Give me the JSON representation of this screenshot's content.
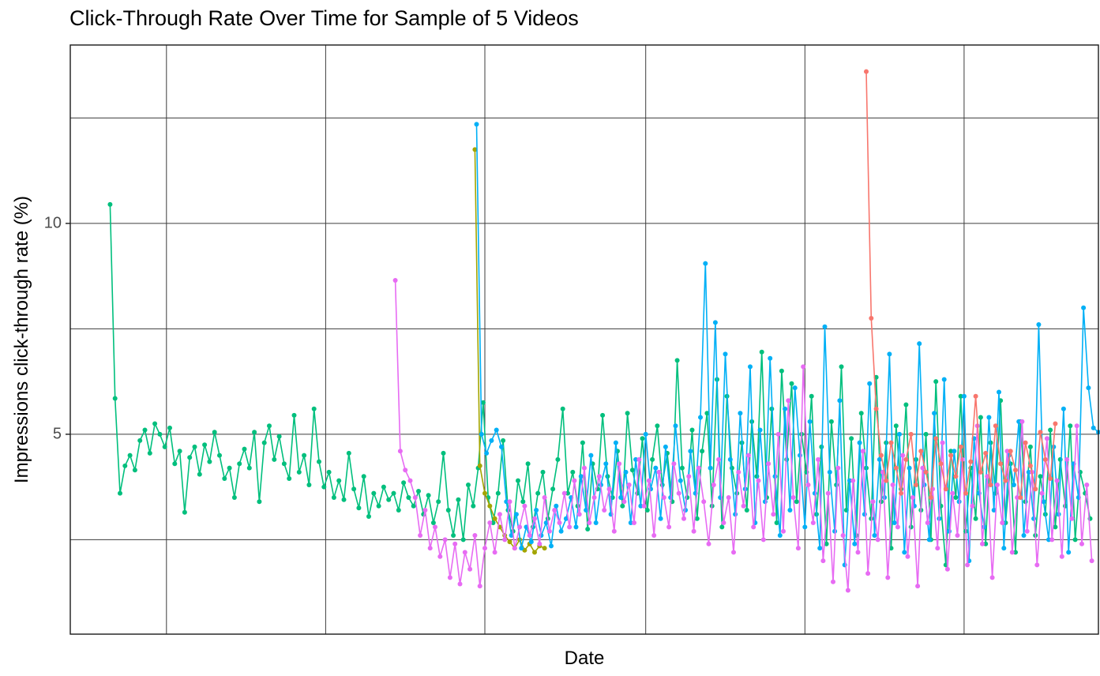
{
  "title": "Click-Through Rate Over Time for Sample of 5 Videos",
  "chart_data": {
    "type": "line",
    "title": "Click-Through Rate Over Time for Sample of 5 Videos",
    "xlabel": "Date",
    "ylabel": "Impressions click-through rate (%)",
    "legend": "none",
    "xlim": [
      0,
      620
    ],
    "ylim": [
      0.26,
      14.23
    ],
    "x_gridlines": [
      58,
      154,
      250,
      347,
      443,
      539
    ],
    "y_gridlines": [
      2.5,
      5,
      7.5,
      10,
      12.5
    ],
    "y_ticks": [
      {
        "value": 5,
        "label": "5"
      },
      {
        "value": 10,
        "label": "10"
      }
    ],
    "x_tick_labels": [],
    "series": [
      {
        "name": "video-1",
        "color": "#00BF7D",
        "x_start": 24,
        "x_step": 3,
        "values": [
          10.45,
          5.85,
          3.6,
          4.25,
          4.5,
          4.15,
          4.85,
          5.1,
          4.55,
          5.25,
          5.0,
          4.7,
          5.15,
          4.3,
          4.6,
          3.15,
          4.45,
          4.7,
          4.05,
          4.75,
          4.35,
          5.05,
          4.5,
          3.95,
          4.2,
          3.5,
          4.3,
          4.65,
          4.2,
          5.05,
          3.4,
          4.8,
          5.2,
          4.4,
          4.95,
          4.3,
          3.95,
          5.45,
          4.1,
          4.5,
          3.8,
          5.6,
          4.35,
          3.75,
          4.1,
          3.5,
          3.9,
          3.45,
          4.55,
          3.7,
          3.25,
          4.0,
          3.05,
          3.6,
          3.3,
          3.75,
          3.45,
          3.6,
          3.2,
          3.85,
          3.5,
          3.3,
          3.65,
          3.1,
          3.55,
          2.9,
          3.4,
          4.55,
          3.2,
          2.6,
          3.45,
          2.5,
          3.8,
          3.3,
          4.2,
          5.75,
          3.5,
          2.9,
          3.6,
          4.85,
          3.2,
          2.7,
          3.9,
          3.4,
          4.3,
          2.8,
          3.6,
          4.1,
          3.0,
          3.7,
          4.4,
          5.6,
          3.6,
          4.1,
          3.3,
          4.8,
          2.75,
          4.3,
          3.7,
          5.45,
          4.0,
          3.5,
          4.6,
          3.3,
          5.5,
          4.15,
          3.6,
          4.9,
          3.2,
          4.4,
          5.2,
          3.8,
          4.55,
          3.4,
          6.75,
          4.2,
          3.5,
          5.1,
          3.0,
          4.6,
          5.5,
          3.3,
          6.3,
          2.8,
          5.9,
          4.2,
          3.6,
          4.8,
          3.2,
          5.3,
          4.0,
          6.95,
          3.5,
          5.6,
          2.9,
          6.5,
          4.4,
          6.2,
          3.4,
          5.0,
          4.1,
          5.9,
          3.1,
          4.7,
          2.4,
          5.3,
          3.8,
          6.6,
          3.2,
          4.9,
          2.6,
          5.5,
          4.2,
          3.0,
          6.35,
          3.4,
          4.8,
          2.3,
          5.2,
          3.7,
          5.7,
          2.8,
          4.4,
          3.2,
          5.0,
          2.5,
          6.25,
          3.3,
          1.9,
          4.6,
          3.5,
          5.9,
          2.7,
          4.2,
          3.0,
          5.4,
          2.4,
          4.8,
          3.6,
          5.8,
          2.9,
          4.3,
          2.2,
          5.3,
          3.4,
          4.7,
          2.6,
          4.0,
          3.1,
          5.1,
          2.8,
          4.4,
          3.3,
          5.2,
          2.5,
          4.1,
          3.6,
          3.0
        ]
      },
      {
        "name": "video-2",
        "color": "#A3A500",
        "x_start": 244,
        "x_step": 3,
        "values": [
          11.75,
          4.25,
          3.6,
          3.3,
          3.0,
          2.8,
          2.6,
          2.45,
          2.3,
          2.5,
          2.25,
          2.4,
          2.2,
          2.35,
          2.3
        ]
      },
      {
        "name": "video-3",
        "color": "#00B0F6",
        "x_start": 245,
        "x_step": 3,
        "values": [
          12.35,
          5.0,
          4.55,
          4.85,
          5.1,
          4.7,
          3.4,
          2.6,
          3.1,
          2.3,
          2.8,
          2.45,
          3.2,
          2.6,
          2.9,
          2.35,
          3.3,
          2.7,
          3.0,
          3.5,
          2.8,
          4.0,
          3.2,
          4.5,
          2.9,
          3.8,
          4.3,
          3.1,
          4.8,
          3.5,
          4.1,
          2.9,
          4.4,
          3.3,
          5.0,
          3.7,
          4.2,
          3.0,
          4.7,
          3.5,
          5.2,
          3.9,
          3.2,
          4.6,
          3.6,
          5.4,
          9.05,
          4.2,
          7.65,
          3.5,
          6.9,
          4.4,
          3.1,
          5.5,
          3.7,
          6.6,
          2.9,
          5.1,
          3.4,
          6.8,
          4.0,
          2.6,
          5.6,
          3.2,
          6.1,
          4.5,
          2.8,
          5.3,
          3.6,
          2.3,
          7.55,
          4.1,
          2.7,
          5.8,
          1.9,
          3.9,
          2.4,
          4.8,
          3.1,
          6.2,
          2.6,
          4.4,
          3.5,
          6.9,
          2.9,
          5.0,
          2.2,
          4.2,
          3.3,
          7.15,
          3.8,
          2.5,
          5.5,
          3.0,
          6.3,
          2.7,
          4.6,
          3.4,
          5.9,
          2.0,
          4.9,
          3.6,
          2.8,
          5.4,
          3.2,
          6.0,
          2.3,
          4.5,
          3.8,
          5.3,
          2.6,
          4.1,
          3.0,
          7.6,
          3.4,
          2.5,
          4.7,
          3.1,
          5.6,
          2.2,
          4.3,
          3.5,
          8.0,
          6.1,
          5.15,
          5.05
        ]
      },
      {
        "name": "video-4",
        "color": "#E76BF3",
        "x_start": 196,
        "x_step": 3,
        "values": [
          8.65,
          4.6,
          4.15,
          3.9,
          3.5,
          2.6,
          3.2,
          2.3,
          2.8,
          2.1,
          2.5,
          1.6,
          2.4,
          1.45,
          2.2,
          1.8,
          2.6,
          1.4,
          2.3,
          2.9,
          2.2,
          3.1,
          2.5,
          3.4,
          2.3,
          2.8,
          3.3,
          2.6,
          3.0,
          2.4,
          3.5,
          2.7,
          3.2,
          2.9,
          3.6,
          2.8,
          3.9,
          3.1,
          4.2,
          2.9,
          3.5,
          4.0,
          3.2,
          3.7,
          2.7,
          4.3,
          3.4,
          3.8,
          2.9,
          4.4,
          3.3,
          3.9,
          2.6,
          4.1,
          3.5,
          2.8,
          4.3,
          3.6,
          3.0,
          4.0,
          2.7,
          4.2,
          3.4,
          2.4,
          3.8,
          4.4,
          2.9,
          3.5,
          2.2,
          4.1,
          3.3,
          4.5,
          2.8,
          3.9,
          2.5,
          4.3,
          3.1,
          5.0,
          2.7,
          5.8,
          3.5,
          2.3,
          6.6,
          3.8,
          2.9,
          4.4,
          2.0,
          3.6,
          1.5,
          4.2,
          2.6,
          1.3,
          3.9,
          2.2,
          4.6,
          1.7,
          3.4,
          2.5,
          4.1,
          1.6,
          3.8,
          2.8,
          4.5,
          2.1,
          3.5,
          1.4,
          4.2,
          2.9,
          3.7,
          2.3,
          4.8,
          1.8,
          3.6,
          2.6,
          4.4,
          1.9,
          3.3,
          5.2,
          2.4,
          4.0,
          1.6,
          3.8,
          2.9,
          4.6,
          2.2,
          3.5,
          5.3,
          2.7,
          4.1,
          1.9,
          3.6,
          4.9,
          2.5,
          3.9,
          2.1,
          4.4,
          3.0,
          5.2,
          2.4,
          3.8,
          2.0
        ]
      },
      {
        "name": "video-5",
        "color": "#F8766D",
        "x_start": 480,
        "x_step": 3,
        "values": [
          13.6,
          7.75,
          5.6,
          4.5,
          3.9,
          4.8,
          4.2,
          3.6,
          4.4,
          5.0,
          3.8,
          4.6,
          4.1,
          3.5,
          4.9,
          4.3,
          3.7,
          4.5,
          4.0,
          4.7,
          3.6,
          4.35,
          5.9,
          4.1,
          4.55,
          3.8,
          5.2,
          4.3,
          3.9,
          4.6,
          4.15,
          3.5,
          4.8,
          4.25,
          3.7,
          5.05,
          4.4,
          3.95,
          5.25
        ]
      }
    ]
  }
}
